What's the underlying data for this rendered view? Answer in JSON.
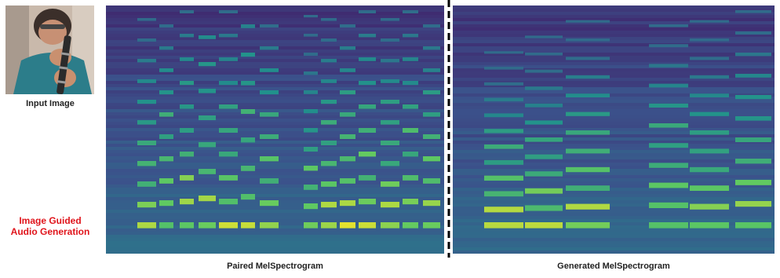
{
  "captions": {
    "input": "Input Image",
    "task_line1": "Image Guided",
    "task_line2": "Audio Generation",
    "paired": "Paired MelSpectrogram",
    "generated": "Generated MelSpectrogram"
  },
  "colors": {
    "task_label": "#e0141b",
    "viridis_low": "#440154",
    "viridis_mid": "#21918c",
    "viridis_high": "#fde725"
  }
}
